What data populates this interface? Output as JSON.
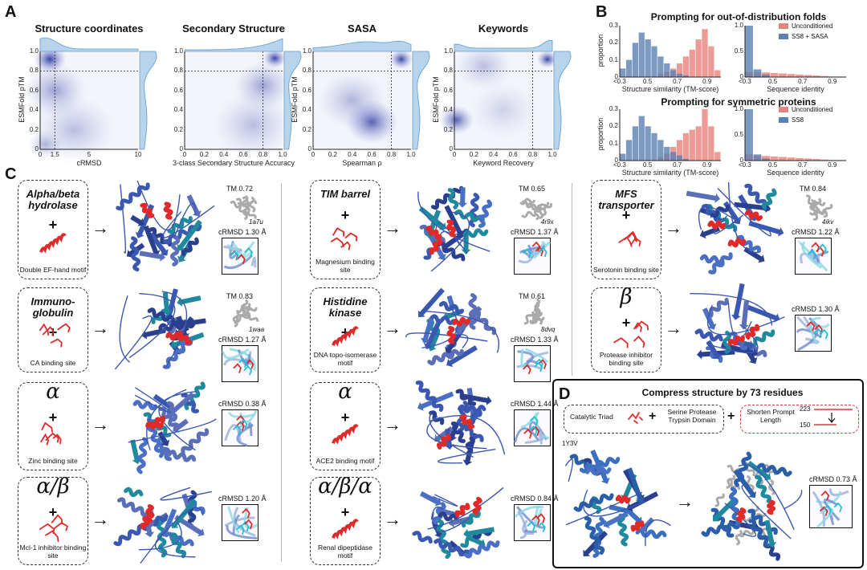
{
  "panels": {
    "a": "A",
    "b": "B",
    "c": "C",
    "d": "D"
  },
  "panel_a": {
    "ylabel": "ESMFold pTM",
    "plots": [
      {
        "title": "Structure coordinates",
        "xlabel": "cRMSD",
        "xticks": [
          "0",
          "1.5",
          "5",
          "10"
        ]
      },
      {
        "title": "Secondary Structure",
        "xlabel": "3-class Secondary Structure Accuracy",
        "xticks": [
          "0",
          "0.2",
          "0.4",
          "0.6",
          "0.8",
          "1.0"
        ]
      },
      {
        "title": "SASA",
        "xlabel": "Spearman ρ",
        "xticks": [
          "0",
          "0.2",
          "0.4",
          "0.6",
          "0.8",
          "1.0"
        ]
      },
      {
        "title": "Keywords",
        "xlabel": "Keyword Recovery",
        "xticks": [
          "0",
          "0.2",
          "0.4",
          "0.6",
          "0.8",
          "1.0"
        ]
      }
    ],
    "yticks": [
      "0",
      "0.2",
      "0.4",
      "0.6",
      "0.8",
      "1.0"
    ]
  },
  "panel_b": {
    "title1": "Prompting for out-of-distribution folds",
    "title2": "Prompting for symmetric proteins",
    "ylabel": "proportion",
    "xlabel_left": "Structure similarity (TM-score)",
    "xlabel_right": "Sequence identity",
    "xticks": [
      "<0.3",
      "0.5",
      "0.7",
      "0.9"
    ],
    "yticks_left": [
      "0",
      "0.1",
      "0.2",
      "0.3"
    ],
    "yticks_right": [
      "0",
      "0.5",
      "1.0"
    ],
    "legend1": [
      "Unconditioned",
      "SS8 + SASA"
    ],
    "legend2": [
      "Unconditioned",
      "SS8"
    ],
    "colors": {
      "unconditioned": "#e8827a",
      "conditioned": "#5b7fb0"
    }
  },
  "chart_data": [
    {
      "type": "bar",
      "title": "Prompting for out-of-distribution folds",
      "xlabel": "Structure similarity (TM-score)",
      "ylabel": "proportion",
      "series": [
        {
          "name": "Unconditioned",
          "values": [
            0,
            0,
            0,
            0,
            0,
            0,
            0.02,
            0.03,
            0.05,
            0.08,
            0.12,
            0.16,
            0.22,
            0.28,
            0.18,
            0.04
          ]
        },
        {
          "name": "SS8 + SASA",
          "values": [
            0.05,
            0.1,
            0.2,
            0.26,
            0.22,
            0.18,
            0.12,
            0.08,
            0.04,
            0.02,
            0.01,
            0,
            0,
            0,
            0,
            0
          ]
        }
      ]
    },
    {
      "type": "bar",
      "title": "Prompting for out-of-distribution folds",
      "xlabel": "Sequence identity",
      "series": [
        {
          "name": "Unconditioned",
          "values": [
            0.1,
            0.09,
            0.09,
            0.08,
            0.07,
            0.06,
            0.05,
            0.04,
            0.03,
            0.02,
            0.01,
            0.01
          ]
        },
        {
          "name": "SS8 + SASA",
          "values": [
            1.0,
            0.15,
            0.05,
            0,
            0,
            0,
            0,
            0,
            0,
            0,
            0,
            0
          ]
        }
      ]
    },
    {
      "type": "bar",
      "title": "Prompting for symmetric proteins",
      "xlabel": "Structure similarity (TM-score)",
      "ylabel": "proportion",
      "series": [
        {
          "name": "Unconditioned",
          "values": [
            0,
            0,
            0,
            0,
            0,
            0,
            0.02,
            0.04,
            0.08,
            0.12,
            0.16,
            0.18,
            0.2,
            0.3,
            0.2,
            0.05
          ]
        },
        {
          "name": "SS8",
          "values": [
            0.04,
            0.12,
            0.2,
            0.26,
            0.2,
            0.16,
            0.12,
            0.08,
            0.05,
            0.03,
            0.01,
            0,
            0,
            0,
            0,
            0
          ]
        }
      ]
    },
    {
      "type": "bar",
      "title": "Prompting for symmetric proteins",
      "xlabel": "Sequence identity",
      "series": [
        {
          "name": "Unconditioned",
          "values": [
            0.12,
            0.1,
            0.09,
            0.08,
            0.07,
            0.06,
            0.05,
            0.04,
            0.03,
            0.02,
            0.01,
            0.01
          ]
        },
        {
          "name": "SS8",
          "values": [
            1.0,
            0.12,
            0.04,
            0,
            0,
            0,
            0,
            0,
            0,
            0,
            0,
            0
          ]
        }
      ]
    }
  ],
  "panel_c": {
    "cards": [
      {
        "title": "Alpha/beta hydrolase",
        "caption": "Double EF-hand motif",
        "tm": "TM 0.72",
        "pdb": "1a7u",
        "crmsd": "cRMSD 1.30 Å"
      },
      {
        "title": "TIM barrel",
        "caption": "Magnesium binding site",
        "tm": "TM 0.65",
        "pdb": "4r9x",
        "crmsd": "cRMSD 1.37 Å"
      },
      {
        "title": "MFS transporter",
        "caption": "Serotonin binding site",
        "tm": "TM 0.84",
        "pdb": "4ikv",
        "crmsd": "cRMSD 1.22 Å"
      },
      {
        "title": "Immuno-globulin",
        "caption": "CA binding site",
        "tm": "TM 0.83",
        "pdb": "1waa",
        "crmsd": "cRMSD 1.27 Å"
      },
      {
        "title": "Histidine kinase",
        "caption": "DNA topo-isomerase motif",
        "tm": "TM 0.61",
        "pdb": "8dvq",
        "crmsd": "cRMSD 1.33 Å"
      },
      {
        "title": "β",
        "caption": "Protease inhibitor binding site",
        "tm": "",
        "pdb": "",
        "crmsd": "cRMSD 1.30 Å"
      },
      {
        "title": "α",
        "caption": "Zinc binding site",
        "tm": "",
        "pdb": "",
        "crmsd": "cRMSD 0.38 Å"
      },
      {
        "title": "α",
        "caption": "ACE2 binding motif",
        "tm": "",
        "pdb": "",
        "crmsd": "cRMSD 1.44 Å"
      },
      {
        "title": "α/β",
        "caption": "Mcl-1 inhibitor binding site",
        "tm": "",
        "pdb": "",
        "crmsd": "cRMSD 1.20 Å"
      },
      {
        "title": "α/β/α",
        "caption": "Renal dipeptidase motif",
        "tm": "",
        "pdb": "",
        "crmsd": "cRMSD 0.84 Å"
      }
    ]
  },
  "panel_d": {
    "title": "Compress structure by 73 residues",
    "triad": "Catalytic Triad",
    "domain": "Serine Protease Trypsin Domain",
    "shorten": "Shorten Prompt Length",
    "len_from": "223",
    "len_to": "150",
    "pdb": "1Y3V",
    "crmsd": "cRMSD 0.73 Å"
  }
}
